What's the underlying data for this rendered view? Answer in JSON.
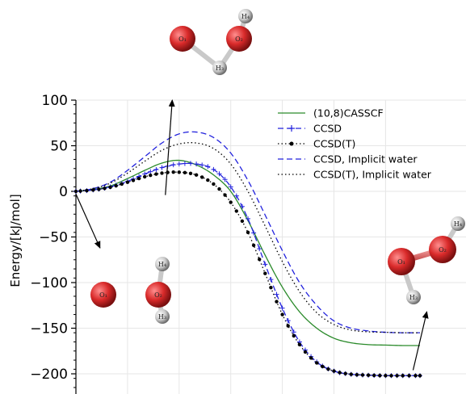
{
  "chart_data": {
    "type": "line",
    "xlabel": "",
    "ylabel": "Energy/[kJ/mol]",
    "ylim": [
      -215,
      100
    ],
    "xlim": [
      0,
      1
    ],
    "yticks": [
      100,
      50,
      0,
      -50,
      -100,
      -150,
      -200
    ],
    "ytick_labels": [
      "100",
      "50",
      "0",
      "−50",
      "−100",
      "−150",
      "−200"
    ],
    "xticks": [
      0,
      0.15,
      0.3,
      0.45,
      0.6,
      0.75,
      0.9
    ],
    "grid": true,
    "legend_position": "top-right",
    "series": [
      {
        "name": "(10,8)CASSCF",
        "color": "#2a8a2a",
        "style": "solid",
        "marker": "none",
        "x": [
          0,
          0.05,
          0.1,
          0.15,
          0.2,
          0.25,
          0.3,
          0.35,
          0.4,
          0.45,
          0.5,
          0.55,
          0.6,
          0.65,
          0.7,
          0.75,
          0.8,
          0.85,
          0.9,
          0.95,
          1.0
        ],
        "y": [
          0,
          2,
          6,
          14,
          23,
          31,
          34,
          29,
          18,
          0,
          -32,
          -70,
          -105,
          -132,
          -150,
          -161,
          -166,
          -168,
          -168.5,
          -169,
          -169
        ]
      },
      {
        "name": "CCSD",
        "color": "#2222dd",
        "style": "dashed",
        "marker": "plus",
        "x": [
          0,
          0.05,
          0.1,
          0.15,
          0.2,
          0.25,
          0.3,
          0.35,
          0.4,
          0.45,
          0.5,
          0.55,
          0.6,
          0.65,
          0.7,
          0.75,
          0.8,
          0.85,
          0.9,
          0.95,
          1.0
        ],
        "y": [
          0,
          1.5,
          5,
          11,
          19,
          26,
          30,
          30,
          24,
          5,
          -30,
          -80,
          -128,
          -165,
          -187,
          -197,
          -200.5,
          -201.5,
          -202,
          -202,
          -202
        ]
      },
      {
        "name": "CCSD(T)",
        "color": "#000000",
        "style": "dotted",
        "marker": "dot",
        "x": [
          0,
          0.05,
          0.1,
          0.15,
          0.2,
          0.25,
          0.3,
          0.35,
          0.4,
          0.45,
          0.5,
          0.55,
          0.6,
          0.65,
          0.7,
          0.75,
          0.8,
          0.85,
          0.9,
          0.95,
          1.0
        ],
        "y": [
          0,
          1.5,
          4.5,
          10,
          16,
          20,
          21,
          18,
          8,
          -12,
          -45,
          -90,
          -135,
          -168,
          -188,
          -197,
          -200.5,
          -201.5,
          -202,
          -202,
          -202
        ]
      },
      {
        "name": "CCSD, Implicit water",
        "color": "#2222dd",
        "style": "dashed",
        "marker": "none",
        "x": [
          0,
          0.05,
          0.1,
          0.15,
          0.2,
          0.25,
          0.3,
          0.35,
          0.4,
          0.45,
          0.5,
          0.55,
          0.6,
          0.65,
          0.7,
          0.75,
          0.8,
          0.85,
          0.9,
          0.95,
          1.0
        ],
        "y": [
          0,
          3,
          10,
          23,
          38,
          53,
          63,
          65,
          59,
          42,
          12,
          -26,
          -65,
          -100,
          -125,
          -142,
          -150,
          -153,
          -154.5,
          -155,
          -155
        ]
      },
      {
        "name": "CCSD(T), Implicit water",
        "color": "#000000",
        "style": "dotted",
        "marker": "none",
        "x": [
          0,
          0.05,
          0.1,
          0.15,
          0.2,
          0.25,
          0.3,
          0.35,
          0.4,
          0.45,
          0.5,
          0.55,
          0.6,
          0.65,
          0.7,
          0.75,
          0.8,
          0.85,
          0.9,
          0.95,
          1.0
        ],
        "y": [
          0,
          3,
          9,
          20,
          33,
          45,
          52,
          53,
          47,
          30,
          0,
          -38,
          -77,
          -110,
          -133,
          -146,
          -152,
          -154,
          -154.5,
          -155,
          -155
        ]
      }
    ],
    "annotations": [
      {
        "type": "arrow",
        "from": [
          0.26,
          -4
        ],
        "to": [
          0.28,
          100
        ],
        "target": "transition-state-structure"
      },
      {
        "type": "arrow",
        "from": [
          0.0,
          -3
        ],
        "to": [
          0.07,
          -62
        ],
        "target": "reactant-structure"
      },
      {
        "type": "arrow",
        "from": [
          0.98,
          -196
        ],
        "to": [
          1.02,
          -132
        ],
        "target": "product-structure"
      }
    ],
    "structures": [
      {
        "id": "transition-state-structure",
        "labels": [
          "O₁",
          "O₂",
          "H₄",
          "H₃"
        ]
      },
      {
        "id": "reactant-structure",
        "labels": [
          "O₁",
          "O₂",
          "H₄",
          "H₃"
        ]
      },
      {
        "id": "product-structure",
        "labels": [
          "O₁",
          "O₂",
          "H₄",
          "H₃"
        ]
      }
    ]
  }
}
